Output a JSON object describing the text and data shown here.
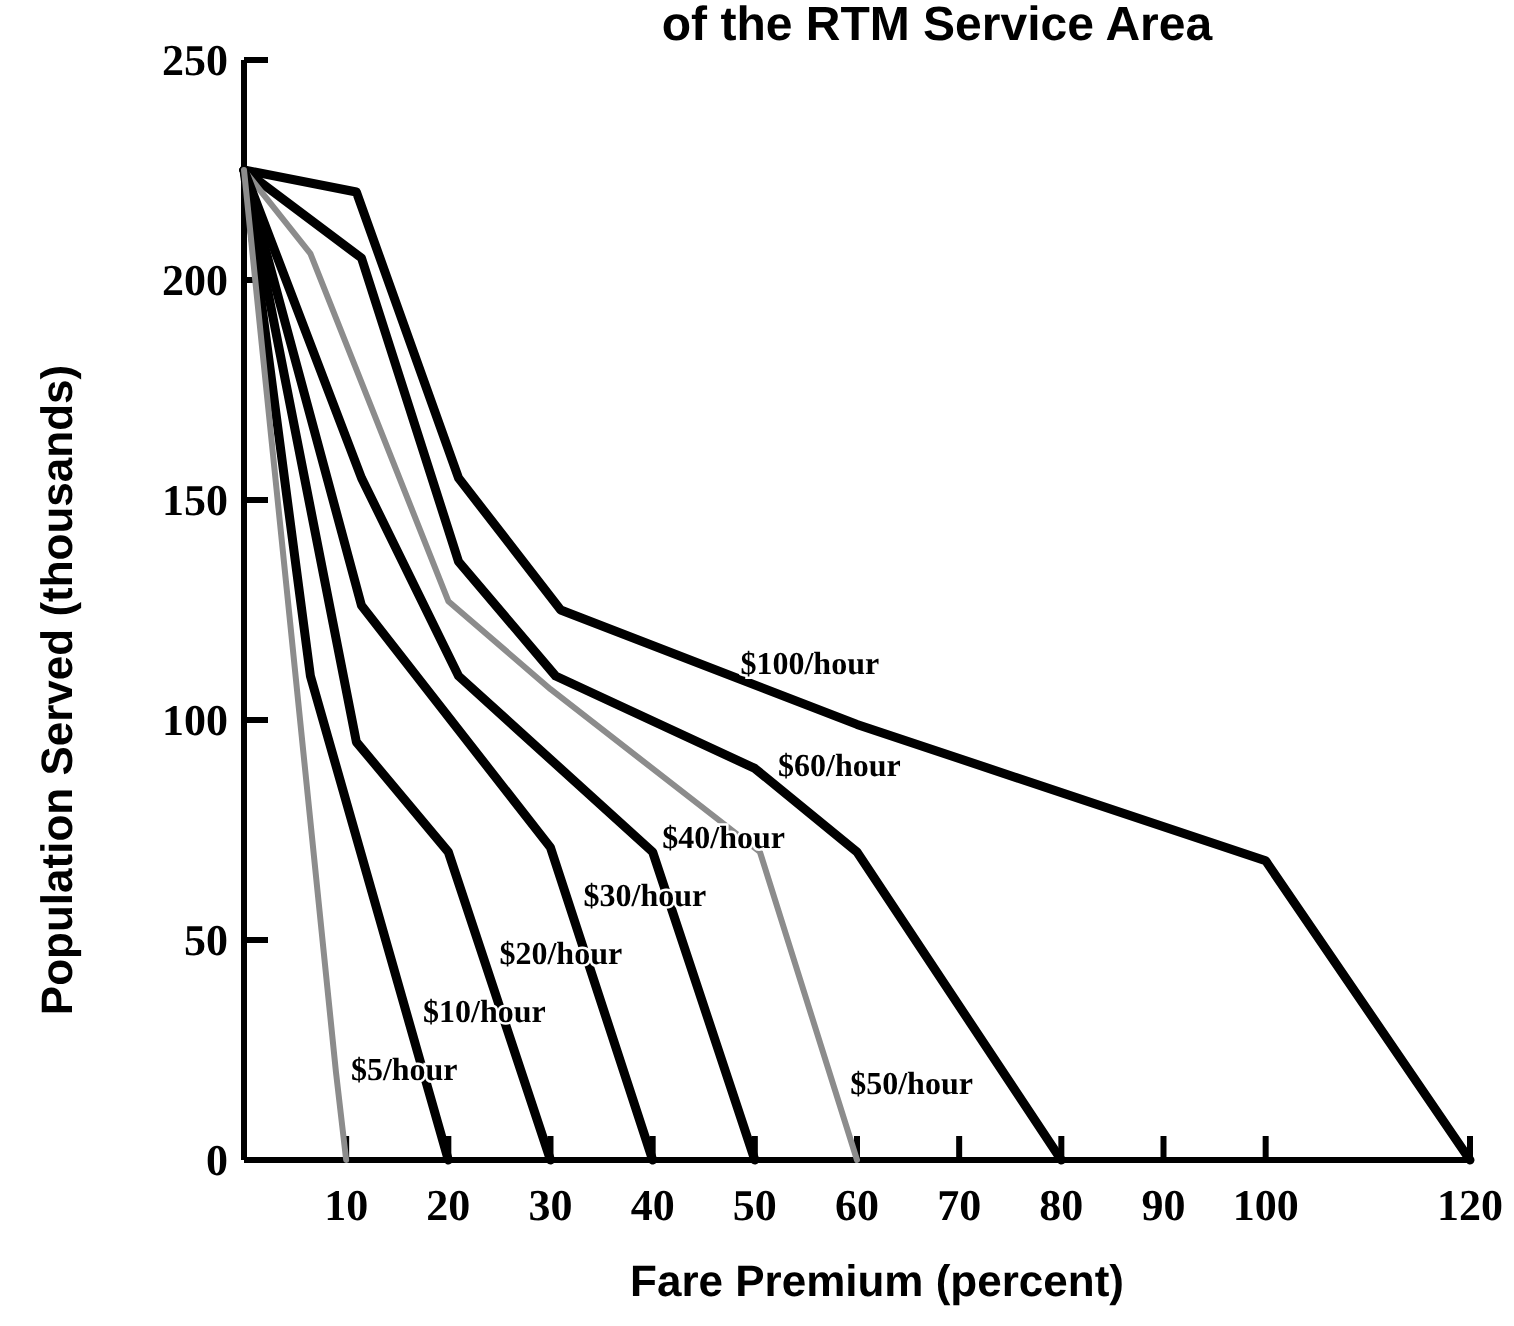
{
  "chart_data": {
    "type": "line",
    "title": "of the RTM Service Area",
    "xlabel": "Fare Premium (percent)",
    "ylabel": "Population Served (thousands)",
    "xlim": [
      0,
      120
    ],
    "xticks": [
      10,
      20,
      30,
      40,
      50,
      60,
      70,
      80,
      90,
      100,
      120
    ],
    "ylim": [
      0,
      250
    ],
    "yticks": [
      0,
      50,
      100,
      150,
      200,
      250
    ],
    "grid": false,
    "marker": "none",
    "line_style": "solid",
    "series": [
      {
        "name": "$100/hour",
        "color": "#000000",
        "x": [
          0,
          11,
          21,
          31,
          60,
          100,
          120
        ],
        "values": [
          225,
          220,
          155,
          125,
          99,
          68,
          0
        ]
      },
      {
        "name": "$60/hour",
        "color": "#000000",
        "x": [
          0,
          11.5,
          21,
          30.5,
          50,
          60,
          80
        ],
        "values": [
          225,
          205,
          136,
          110,
          89,
          70,
          0
        ]
      },
      {
        "name": "$50/hour",
        "color": "#8c8c8c",
        "x": [
          0,
          6.5,
          20,
          30,
          50.5,
          60
        ],
        "values": [
          225,
          206,
          127,
          107,
          70,
          0
        ]
      },
      {
        "name": "$40/hour",
        "color": "#000000",
        "x": [
          0,
          11.5,
          21,
          40,
          50
        ],
        "values": [
          225,
          155,
          110,
          70,
          0
        ]
      },
      {
        "name": "$30/hour",
        "color": "#000000",
        "x": [
          0,
          11.5,
          30,
          40
        ],
        "values": [
          225,
          126,
          71,
          0
        ]
      },
      {
        "name": "$20/hour",
        "color": "#000000",
        "x": [
          0,
          11,
          20,
          30
        ],
        "values": [
          225,
          95,
          70,
          0
        ]
      },
      {
        "name": "$10/hour",
        "color": "#000000",
        "x": [
          0,
          6.5,
          20
        ],
        "values": [
          225,
          110,
          0
        ]
      },
      {
        "name": "$5/hour",
        "color": "#8c8c8c",
        "x": [
          0,
          9,
          10
        ],
        "values": [
          225,
          20,
          0
        ]
      }
    ]
  }
}
